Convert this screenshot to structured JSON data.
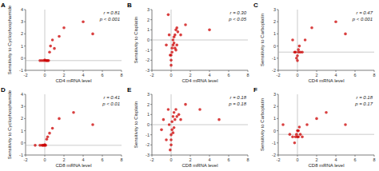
{
  "chart_data": [
    {
      "type": "scatter",
      "title": "A",
      "xlabel": "CD4 mRNA level",
      "ylabel": "Sensitivity to Cyclophosphamide",
      "annotations": [
        "r = 0.81",
        "p < 0.001"
      ],
      "color": "#cc0000",
      "xlim": [
        -2,
        8
      ],
      "xticks": [
        -2,
        0,
        2,
        4,
        6,
        8
      ],
      "ylim": [
        -1,
        4
      ],
      "yticks": [
        -1,
        0,
        1,
        2,
        3,
        4
      ],
      "hline_y": -0.2,
      "vline_x": 0,
      "x": [
        -0.5,
        -0.3,
        -0.1,
        0.0,
        0.1,
        0.2,
        0.3,
        0.4,
        0.5,
        0.6,
        0.8,
        1.0,
        1.5,
        2.0,
        4.0,
        5.0
      ],
      "values": [
        -0.2,
        -0.2,
        -0.2,
        -0.15,
        -0.2,
        -0.2,
        -0.2,
        -0.2,
        0.5,
        1.0,
        1.5,
        0.8,
        1.8,
        2.5,
        3.0,
        2.0
      ]
    },
    {
      "type": "scatter",
      "title": "B",
      "xlabel": "CD4 mRNA level",
      "ylabel": "Sensitivity to Cisplatin",
      "annotations": [
        "r = 0.30",
        "p < 0.05"
      ],
      "color": "#cc0000",
      "xlim": [
        -2,
        8
      ],
      "xticks": [
        -2,
        0,
        2,
        4,
        6,
        8
      ],
      "ylim": [
        -3,
        3
      ],
      "yticks": [
        -3,
        -2,
        -1,
        0,
        1,
        2,
        3
      ],
      "hline_y": 0,
      "vline_x": 0,
      "x": [
        -0.5,
        -0.3,
        -0.2,
        -0.1,
        0.0,
        0.0,
        0.0,
        0.1,
        0.1,
        0.2,
        0.2,
        0.3,
        0.3,
        0.4,
        0.4,
        0.5,
        0.5,
        0.6,
        0.6,
        0.7,
        1.0,
        1.5,
        4.0
      ],
      "values": [
        -0.5,
        2.5,
        0.5,
        -1.5,
        -2.5,
        -2.0,
        -1.5,
        -1.2,
        -0.8,
        -0.5,
        0.0,
        0.3,
        -0.3,
        0.5,
        -0.8,
        1.0,
        -1.0,
        1.2,
        -0.5,
        0.8,
        0.5,
        1.5,
        1.0
      ]
    },
    {
      "type": "scatter",
      "title": "C",
      "xlabel": "CD4 mRNA level",
      "ylabel": "Sensitivity to Carboplatin",
      "annotations": [
        "r = 0.47",
        "p < 0.001"
      ],
      "color": "#cc0000",
      "xlim": [
        -2,
        8
      ],
      "xticks": [
        -2,
        0,
        2,
        4,
        6,
        8
      ],
      "ylim": [
        -2,
        3
      ],
      "yticks": [
        -2,
        -1,
        0,
        1,
        2,
        3
      ],
      "hline_y": -0.5,
      "vline_x": 0,
      "x": [
        -0.5,
        -0.3,
        -0.2,
        -0.1,
        0.0,
        0.0,
        0.1,
        0.1,
        0.2,
        0.3,
        0.5,
        0.8,
        1.5,
        4.0,
        5.0
      ],
      "values": [
        0.5,
        -0.5,
        -0.5,
        -1.0,
        -1.2,
        -0.8,
        -0.5,
        -0.3,
        0.0,
        -0.5,
        -0.5,
        0.5,
        1.5,
        2.0,
        1.0
      ]
    },
    {
      "type": "scatter",
      "title": "D",
      "xlabel": "CD8 mRNA level",
      "ylabel": "Sensitivity to Cyclophosphamide",
      "annotations": [
        "r = 0.41",
        "p < 0.01"
      ],
      "color": "#cc0000",
      "xlim": [
        -2,
        8
      ],
      "xticks": [
        -2,
        0,
        2,
        4,
        6,
        8
      ],
      "ylim": [
        -1,
        4
      ],
      "yticks": [
        -1,
        0,
        1,
        2,
        3,
        4
      ],
      "hline_y": -0.2,
      "vline_x": 0,
      "x": [
        -1.0,
        -0.5,
        -0.3,
        -0.2,
        -0.1,
        0.0,
        0.0,
        0.1,
        0.2,
        0.3,
        0.5,
        0.8,
        1.5,
        3.0,
        5.0
      ],
      "values": [
        -0.2,
        -0.2,
        -0.2,
        -0.2,
        -0.2,
        -0.15,
        -0.2,
        -0.2,
        0.3,
        0.5,
        0.8,
        1.2,
        2.0,
        2.5,
        1.5
      ]
    },
    {
      "type": "scatter",
      "title": "E",
      "xlabel": "CD8 mRNA level",
      "ylabel": "Sensitivity to Cisplatin",
      "annotations": [
        "r = 0.18",
        "p = 0.18"
      ],
      "color": "#cc0000",
      "xlim": [
        -2,
        8
      ],
      "xticks": [
        -2,
        0,
        2,
        4,
        6,
        8
      ],
      "ylim": [
        -3,
        3
      ],
      "yticks": [
        -3,
        -2,
        -1,
        0,
        1,
        2,
        3
      ],
      "hline_y": 0,
      "vline_x": 0,
      "x": [
        -1.0,
        -0.8,
        -0.5,
        -0.3,
        -0.2,
        -0.1,
        0.0,
        0.0,
        0.0,
        0.1,
        0.1,
        0.2,
        0.2,
        0.3,
        0.3,
        0.4,
        0.5,
        0.6,
        0.8,
        1.0,
        1.5,
        3.0,
        5.0
      ],
      "values": [
        -0.5,
        0.5,
        -1.5,
        1.5,
        0.0,
        -2.5,
        -2.0,
        -1.5,
        -1.0,
        -0.5,
        0.3,
        0.8,
        -0.8,
        1.2,
        -0.3,
        0.5,
        1.5,
        0.8,
        1.0,
        0.5,
        2.0,
        1.5,
        0.5
      ]
    },
    {
      "type": "scatter",
      "title": "F",
      "xlabel": "CD8 mRNA level",
      "ylabel": "Sensitivity to Carboplatin",
      "annotations": [
        "r = 0.18",
        "p = 0.17"
      ],
      "color": "#cc0000",
      "xlim": [
        -2,
        8
      ],
      "xticks": [
        -2,
        0,
        2,
        4,
        6,
        8
      ],
      "ylim": [
        -2,
        3
      ],
      "yticks": [
        -2,
        -1,
        0,
        1,
        2,
        3
      ],
      "hline_y": -0.3,
      "vline_x": 0,
      "x": [
        -1.5,
        -0.8,
        -0.5,
        -0.3,
        -0.2,
        -0.1,
        0.0,
        0.0,
        0.1,
        0.1,
        0.2,
        0.3,
        0.5,
        1.0,
        2.0,
        3.0,
        5.0
      ],
      "values": [
        0.5,
        -0.3,
        -0.5,
        -1.0,
        -0.5,
        -0.3,
        0.0,
        -0.5,
        -0.5,
        0.0,
        0.3,
        -0.3,
        -0.5,
        0.5,
        1.0,
        1.5,
        0.5
      ]
    }
  ]
}
